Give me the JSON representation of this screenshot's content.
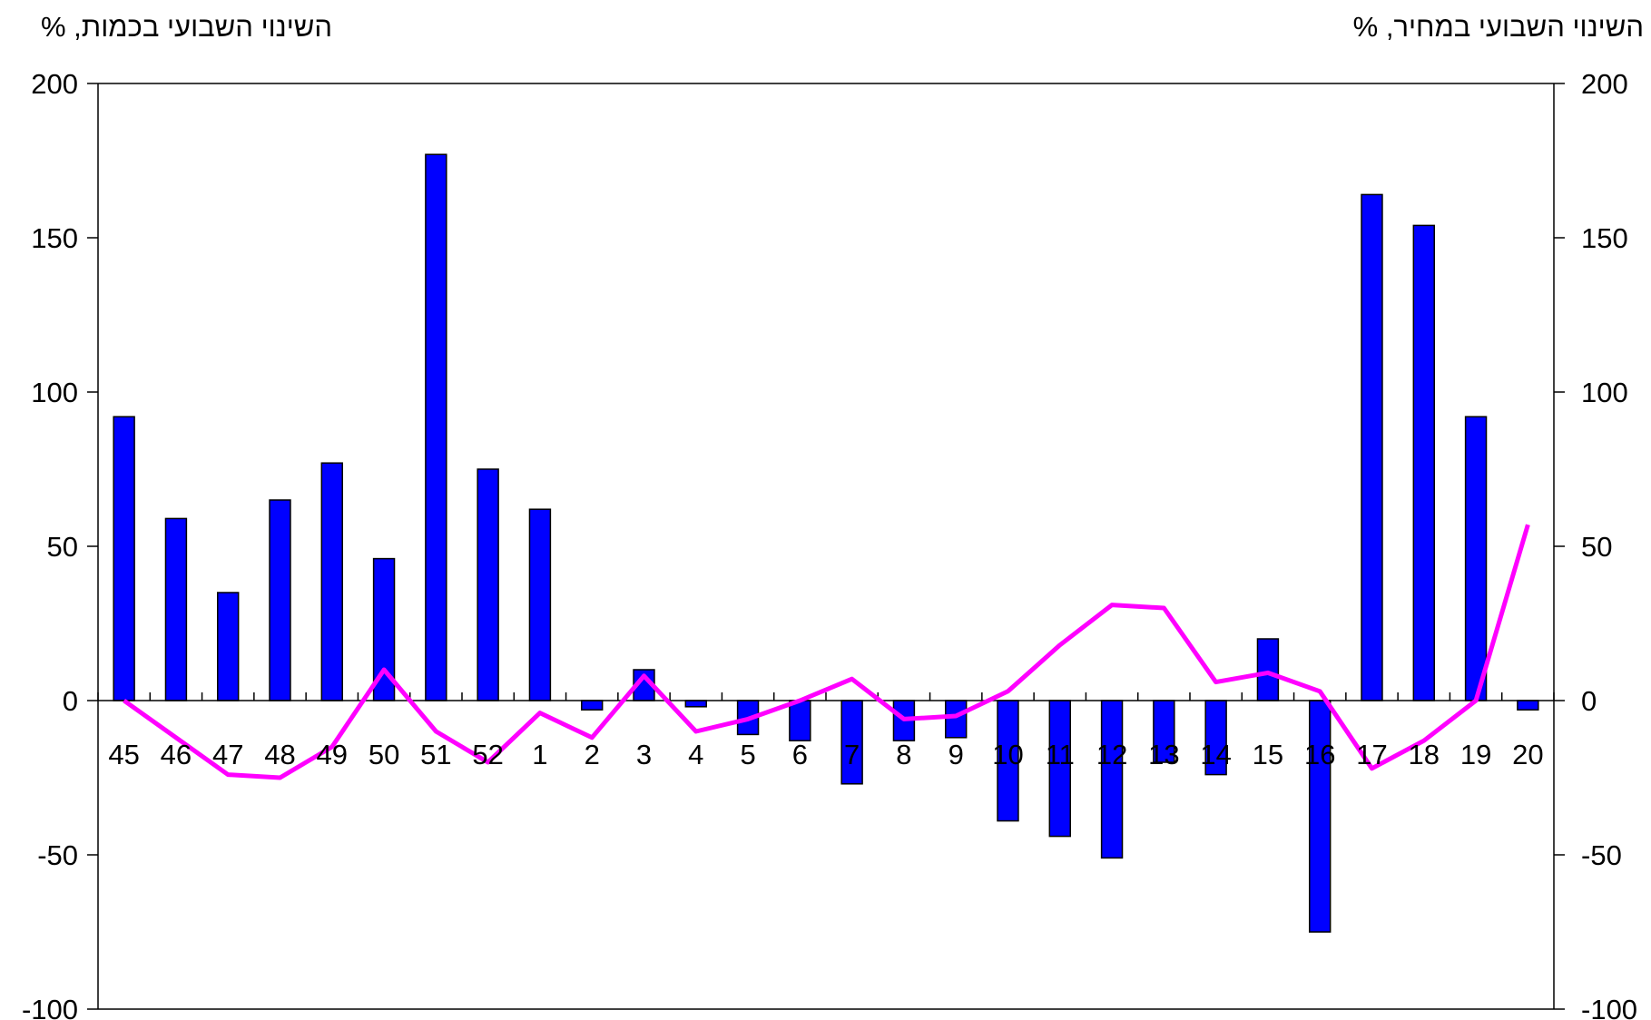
{
  "chart_data": {
    "type": "bar",
    "left_axis_title": "השינוי השבועי בכמות, %",
    "right_axis_title": "השינוי השבועי במחיר, %",
    "categories": [
      "45",
      "46",
      "47",
      "48",
      "49",
      "50",
      "51",
      "52",
      "1",
      "2",
      "3",
      "4",
      "5",
      "6",
      "7",
      "8",
      "9",
      "10",
      "11",
      "12",
      "13",
      "14",
      "15",
      "16",
      "17",
      "18",
      "19",
      "20"
    ],
    "series": [
      {
        "type": "bar",
        "axis": "left",
        "color": "#0000ff",
        "values": [
          92,
          59,
          35,
          65,
          77,
          46,
          177,
          75,
          62,
          -3,
          10,
          -2,
          -11,
          -13,
          -27,
          -13,
          -12,
          -39,
          -44,
          -51,
          -20,
          -24,
          20,
          -75,
          164,
          154,
          92,
          -3
        ]
      },
      {
        "type": "line",
        "axis": "right",
        "color": "#ff00ff",
        "values": [
          0,
          -12,
          -24,
          -25,
          -15,
          10,
          -10,
          -20,
          -4,
          -12,
          8,
          -10,
          -6,
          0,
          7,
          -6,
          -5,
          3,
          18,
          31,
          30,
          6,
          9,
          3,
          -22,
          -13,
          0,
          57
        ]
      }
    ],
    "ylim_left": [
      -100,
      200
    ],
    "ylim_right": [
      -100,
      200
    ],
    "ytick_labels_left": [
      "200",
      "150",
      "100",
      "50",
      "0",
      "-50",
      "-100"
    ],
    "ytick_labels_right": [
      "200",
      "150",
      "100",
      "50",
      "0",
      "-50",
      "-100"
    ],
    "grid": false,
    "legend": "none"
  }
}
